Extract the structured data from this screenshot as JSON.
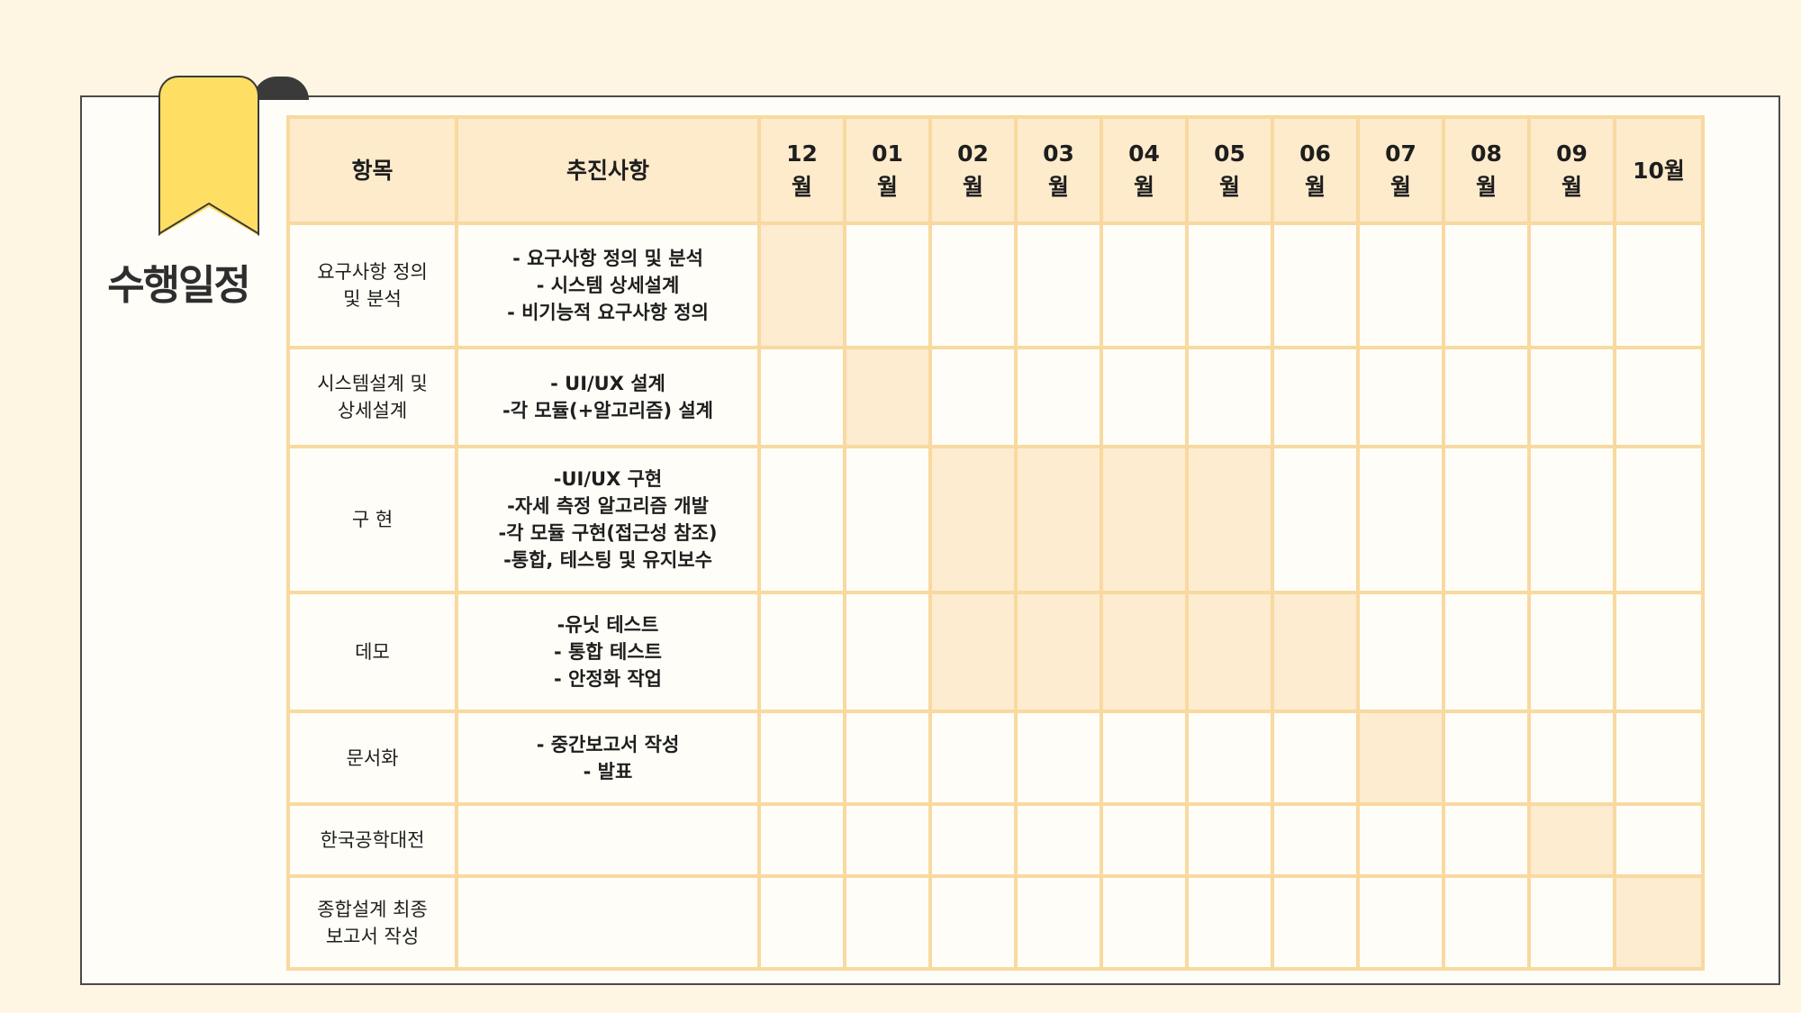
{
  "section_title": "수행일정",
  "ribbon_icon": "bookmark-ribbon-icon",
  "colors": {
    "background": "#fef6e2",
    "card": "#fffdf7",
    "ribbon": "#fedf63",
    "grid": "#f8d9a0",
    "header": "#fdebcc",
    "highlight": "#fdecd0"
  },
  "table": {
    "headers": {
      "item": "항목",
      "detail": "추진사항",
      "months": [
        [
          "12",
          "월"
        ],
        [
          "01",
          "월"
        ],
        [
          "02",
          "월"
        ],
        [
          "03",
          "월"
        ],
        [
          "04",
          "월"
        ],
        [
          "05",
          "월"
        ],
        [
          "06",
          "월"
        ],
        [
          "07",
          "월"
        ],
        [
          "08",
          "월"
        ],
        [
          "09",
          "월"
        ],
        [
          "10월"
        ]
      ]
    },
    "rows": [
      {
        "item": [
          "요구사항 정의",
          "및 분석"
        ],
        "detail": [
          "- 요구사항 정의 및 분석",
          "- 시스템 상세설계",
          "- 비기능적 요구사항 정의"
        ],
        "active_months": [
          0
        ]
      },
      {
        "item": [
          "시스템설계 및",
          "상세설계"
        ],
        "detail": [
          "- UI/UX 설계",
          "-각 모듈(+알고리즘) 설계"
        ],
        "active_months": [
          1
        ]
      },
      {
        "item": [
          "구 현"
        ],
        "detail": [
          "-UI/UX 구현",
          "-자세 측정 알고리즘 개발",
          "-각 모듈 구현(접근성 참조)",
          "-통합, 테스팅 및 유지보수"
        ],
        "active_months": [
          2,
          3,
          4,
          5
        ]
      },
      {
        "item": [
          "데모"
        ],
        "detail": [
          "-유닛 테스트",
          "- 통합 테스트",
          "- 안정화 작업"
        ],
        "active_months": [
          2,
          3,
          4,
          5,
          6
        ]
      },
      {
        "item": [
          "문서화"
        ],
        "detail": [
          "- 중간보고서 작성",
          "- 발표"
        ],
        "active_months": [
          7
        ]
      },
      {
        "item": [
          "한국공학대전"
        ],
        "detail": [],
        "active_months": [
          9
        ]
      },
      {
        "item": [
          "종합설계 최종",
          "보고서 작성"
        ],
        "detail": [],
        "active_months": [
          10
        ]
      }
    ]
  }
}
